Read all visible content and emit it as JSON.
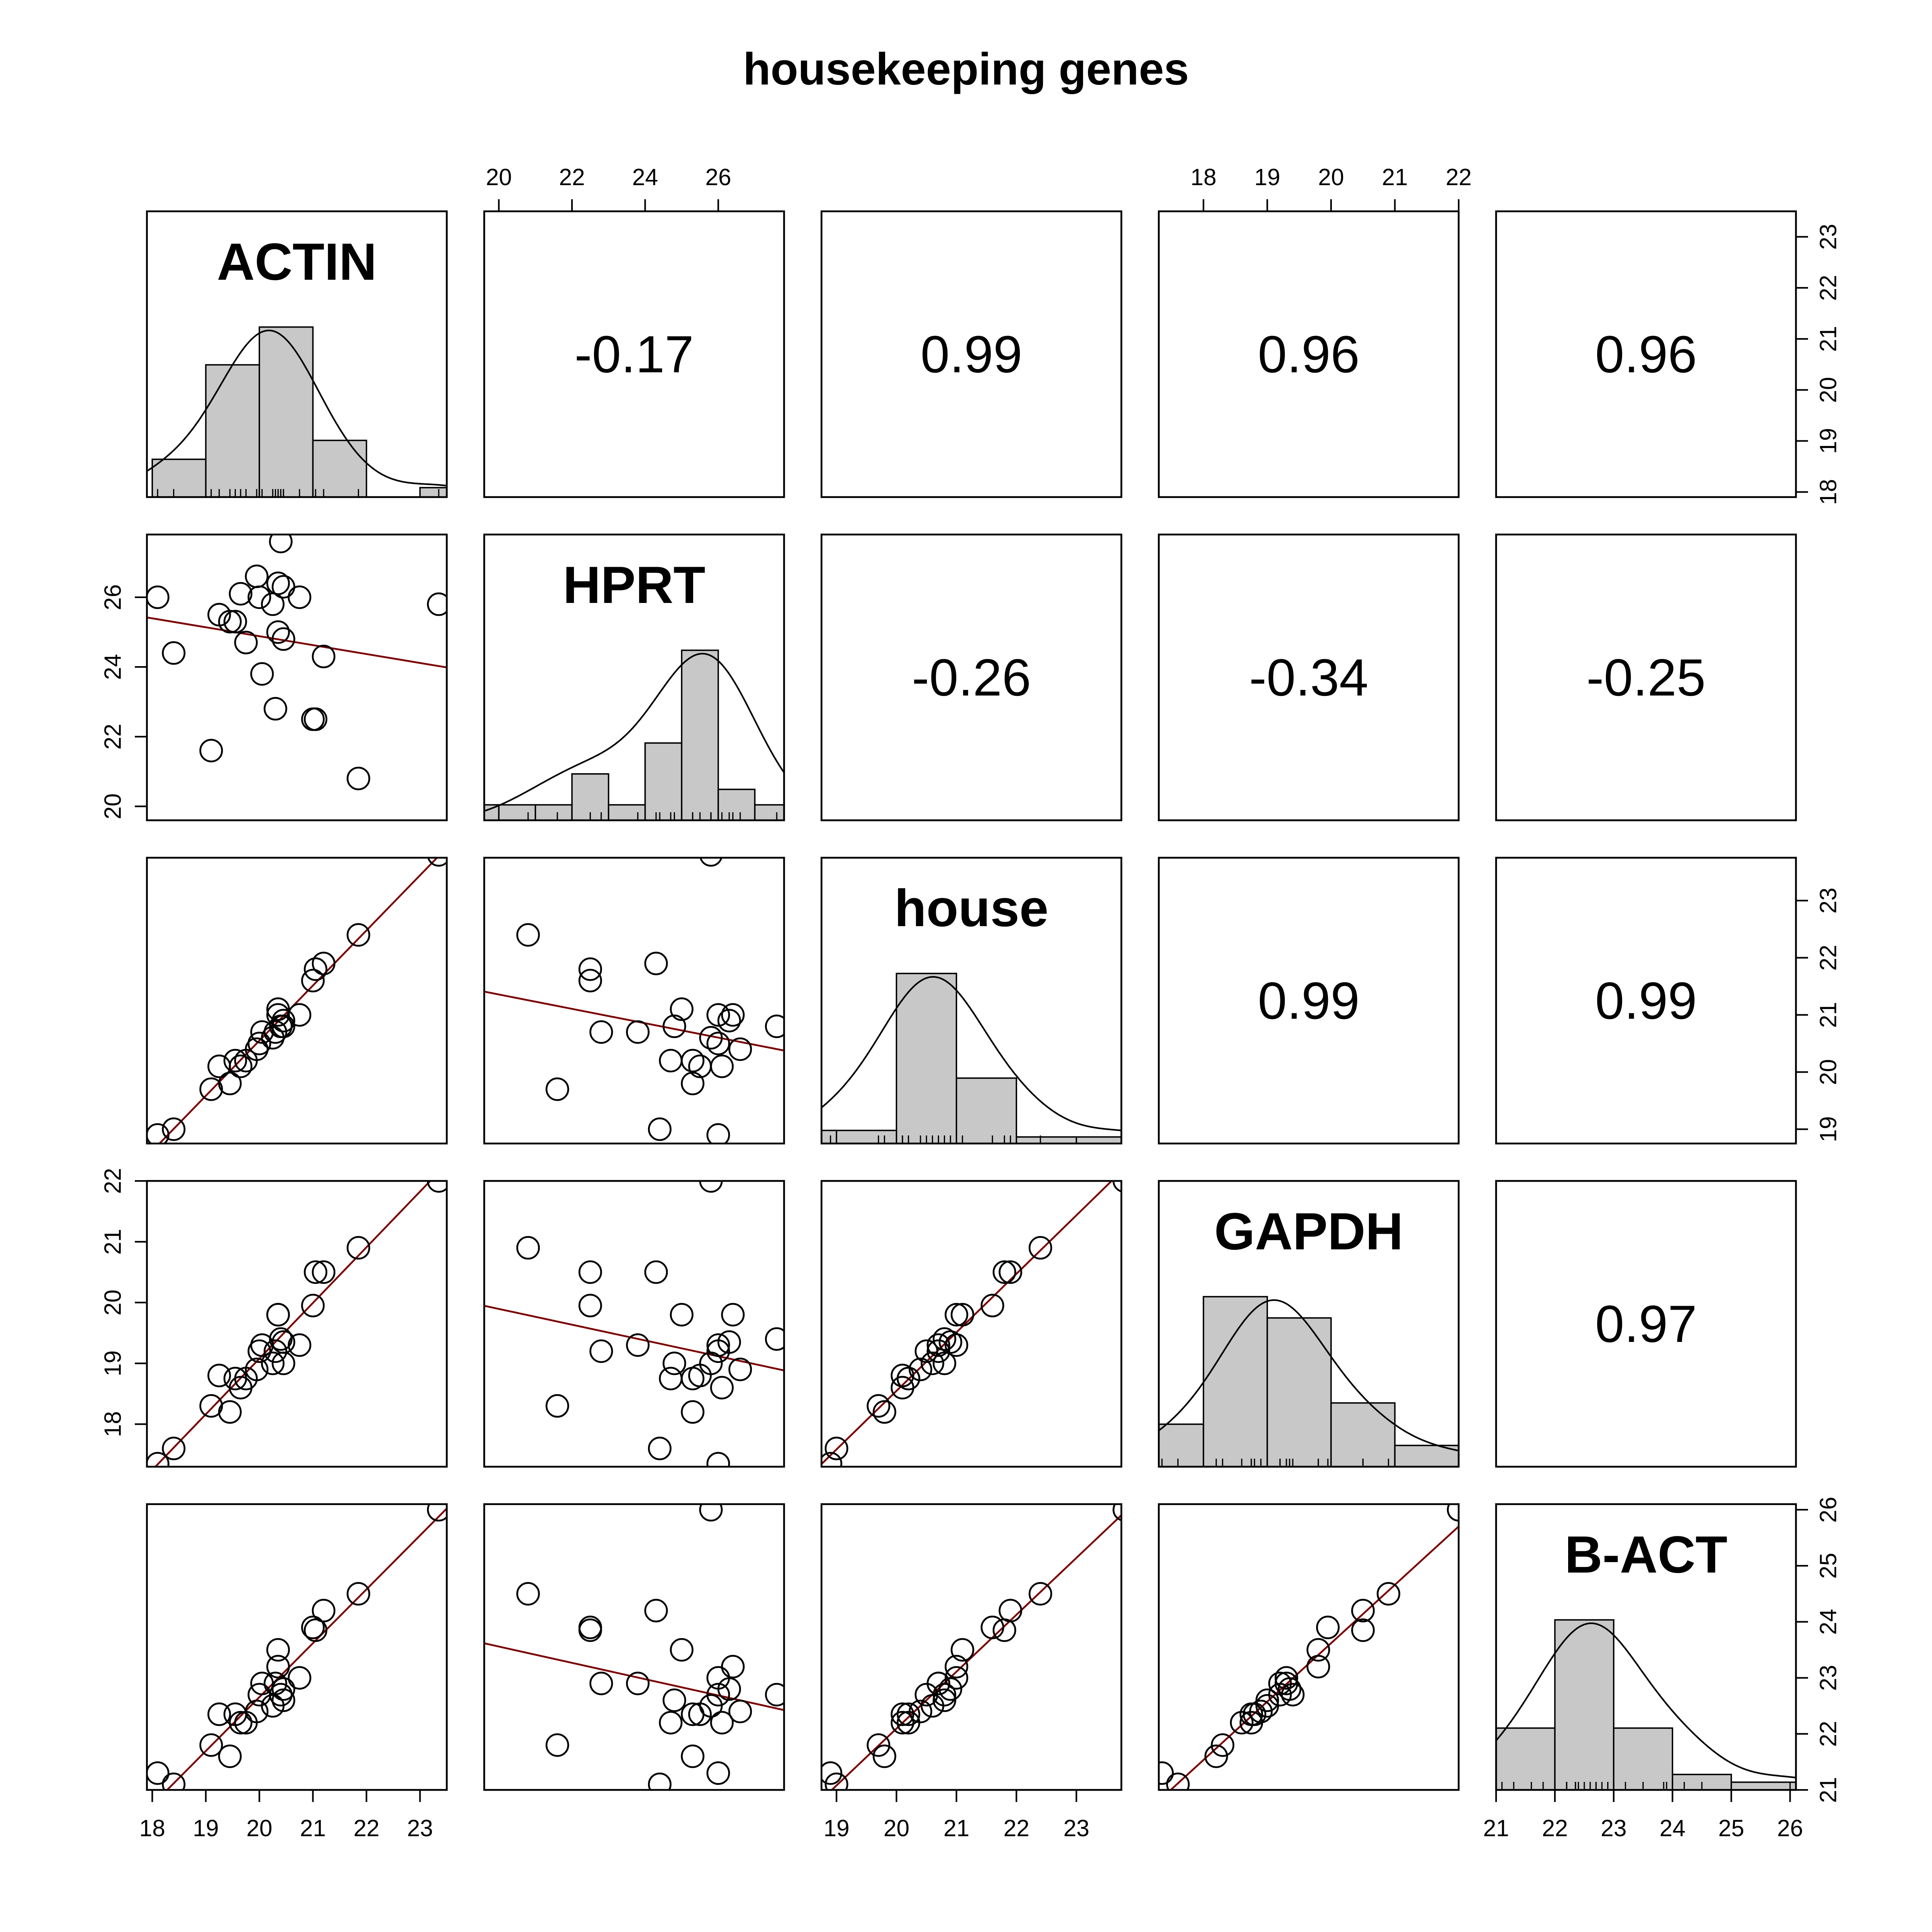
{
  "chart_data": {
    "type": "scatter",
    "title": "housekeeping genes",
    "variables": [
      "ACTIN",
      "HPRT",
      "house",
      "GAPDH",
      "B-ACT"
    ],
    "ranges": [
      [
        17.9,
        23.5
      ],
      [
        19.6,
        27.8
      ],
      [
        18.75,
        23.75
      ],
      [
        17.3,
        22.0
      ],
      [
        21.0,
        26.1
      ]
    ],
    "axis_ticks": [
      [
        18,
        19,
        20,
        21,
        22,
        23
      ],
      [
        20,
        22,
        24,
        26
      ],
      [
        19,
        20,
        21,
        22,
        23
      ],
      [
        18,
        19,
        20,
        21,
        22
      ],
      [
        21,
        22,
        23,
        24,
        25,
        26
      ]
    ],
    "panels": {
      "upper": "correlation",
      "lower": "scatter with linear fit",
      "diagonal": "histogram with density curve and rug"
    },
    "correlations": [
      {
        "row": 0,
        "col": 1,
        "label": "-0.17"
      },
      {
        "row": 0,
        "col": 2,
        "label": "0.99"
      },
      {
        "row": 0,
        "col": 3,
        "label": "0.96"
      },
      {
        "row": 0,
        "col": 4,
        "label": "0.96"
      },
      {
        "row": 1,
        "col": 2,
        "label": "-0.26"
      },
      {
        "row": 1,
        "col": 3,
        "label": "-0.34"
      },
      {
        "row": 1,
        "col": 4,
        "label": "-0.25"
      },
      {
        "row": 2,
        "col": 3,
        "label": "0.99"
      },
      {
        "row": 2,
        "col": 4,
        "label": "0.99"
      },
      {
        "row": 3,
        "col": 4,
        "label": "0.97"
      }
    ],
    "observations": {
      "ACTIN": [
        18.1,
        18.4,
        19.1,
        19.25,
        19.45,
        19.55,
        19.65,
        19.75,
        19.95,
        20.0,
        20.05,
        20.25,
        20.3,
        20.35,
        20.35,
        20.4,
        20.45,
        20.45,
        20.75,
        21.0,
        21.05,
        21.2,
        21.85,
        23.35
      ],
      "HPRT": [
        26.0,
        24.4,
        21.6,
        25.5,
        25.3,
        25.3,
        26.1,
        24.7,
        26.6,
        26.0,
        23.8,
        25.8,
        22.8,
        26.4,
        25.0,
        27.6,
        26.3,
        24.8,
        26.0,
        22.5,
        22.5,
        24.3,
        20.8,
        25.8
      ],
      "house": [
        18.9,
        19.0,
        19.7,
        20.1,
        19.8,
        20.2,
        20.1,
        20.2,
        20.4,
        20.5,
        20.7,
        20.6,
        20.7,
        21.0,
        21.1,
        20.8,
        20.9,
        20.8,
        21.0,
        21.6,
        21.8,
        21.9,
        22.4,
        23.8
      ],
      "GAPDH": [
        17.35,
        17.6,
        18.3,
        18.8,
        18.2,
        18.75,
        18.6,
        18.75,
        18.9,
        19.2,
        19.3,
        19.0,
        19.2,
        19.8,
        19.8,
        19.4,
        19.35,
        19.0,
        19.3,
        19.95,
        20.5,
        20.5,
        20.9,
        22.0
      ],
      "B-ACT": [
        21.3,
        21.1,
        21.8,
        22.35,
        21.6,
        22.35,
        22.2,
        22.2,
        22.4,
        22.7,
        22.9,
        22.5,
        22.9,
        23.2,
        23.5,
        22.7,
        22.8,
        22.6,
        23.0,
        23.9,
        23.85,
        24.2,
        24.5,
        26.0
      ]
    },
    "histograms": [
      {
        "variable": "ACTIN",
        "bins": [
          18,
          19,
          20,
          21,
          22,
          23,
          23.5
        ],
        "counts": [
          2,
          7,
          9,
          3,
          0,
          0.5
        ]
      },
      {
        "variable": "HPRT",
        "bins": [
          19.6,
          20.0,
          21.0,
          22.0,
          23.0,
          24.0,
          25.0,
          26.0,
          27.0,
          27.8
        ],
        "counts": [
          1,
          1,
          1,
          3,
          1,
          5,
          11,
          2,
          1
        ]
      },
      {
        "variable": "house",
        "bins": [
          18.75,
          19,
          20,
          21,
          22,
          23,
          23.75
        ],
        "counts": [
          1,
          1,
          13,
          5,
          0.5,
          0.5
        ]
      },
      {
        "variable": "GAPDH",
        "bins": [
          17.3,
          18,
          19,
          20,
          21,
          22
        ],
        "counts": [
          2,
          8,
          7,
          3,
          1
        ]
      },
      {
        "variable": "B-ACT",
        "bins": [
          21,
          22,
          23,
          24,
          25,
          26.1
        ],
        "counts": [
          4,
          11,
          4,
          1,
          0.5
        ]
      }
    ],
    "fit_line_color": "#7a0000",
    "histogram_fill": "#c8c8c8",
    "point_style": "open circle",
    "grid": false,
    "legend": "none"
  }
}
